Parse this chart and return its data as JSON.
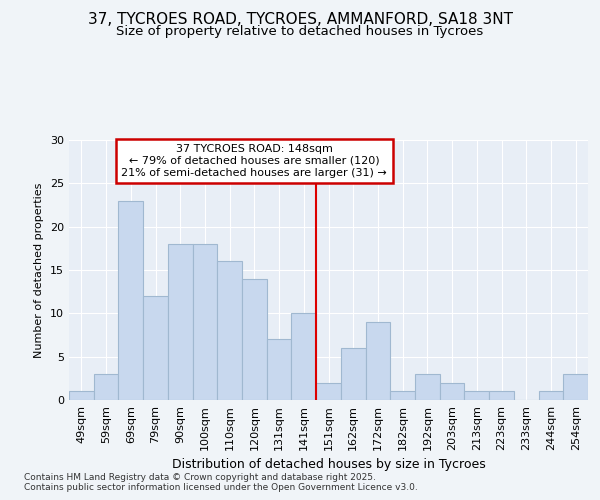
{
  "title1": "37, TYCROES ROAD, TYCROES, AMMANFORD, SA18 3NT",
  "title2": "Size of property relative to detached houses in Tycroes",
  "xlabel": "Distribution of detached houses by size in Tycroes",
  "ylabel": "Number of detached properties",
  "bar_labels": [
    "49sqm",
    "59sqm",
    "69sqm",
    "79sqm",
    "90sqm",
    "100sqm",
    "110sqm",
    "120sqm",
    "131sqm",
    "141sqm",
    "151sqm",
    "162sqm",
    "172sqm",
    "182sqm",
    "192sqm",
    "203sqm",
    "213sqm",
    "223sqm",
    "233sqm",
    "244sqm",
    "254sqm"
  ],
  "bar_values": [
    1,
    3,
    23,
    12,
    18,
    18,
    16,
    14,
    7,
    10,
    2,
    6,
    9,
    1,
    3,
    2,
    1,
    1,
    0,
    1,
    3
  ],
  "bar_color": "#c8d8ee",
  "bar_edge_color": "#a0b8d0",
  "vline_index": 10,
  "vline_color": "#dd0000",
  "annotation_title": "37 TYCROES ROAD: 148sqm",
  "annotation_line1": "← 79% of detached houses are smaller (120)",
  "annotation_line2": "21% of semi-detached houses are larger (31) →",
  "ylim": [
    0,
    30
  ],
  "yticks": [
    0,
    5,
    10,
    15,
    20,
    25,
    30
  ],
  "bg_color": "#f0f4f8",
  "plot_bg_color": "#e8eef6",
  "footer": "Contains HM Land Registry data © Crown copyright and database right 2025.\nContains public sector information licensed under the Open Government Licence v3.0.",
  "annotation_box_color": "#cc0000",
  "grid_color": "#ffffff",
  "title1_fontsize": 11,
  "title2_fontsize": 9.5,
  "xlabel_fontsize": 9,
  "ylabel_fontsize": 8,
  "tick_fontsize": 8,
  "annotation_fontsize": 8,
  "footer_fontsize": 6.5
}
